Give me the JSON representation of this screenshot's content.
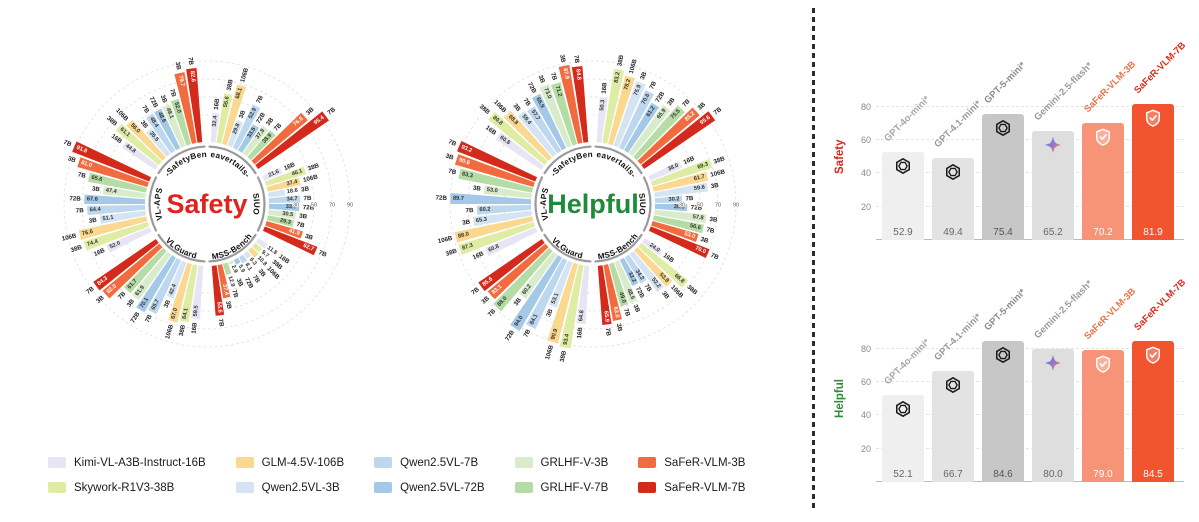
{
  "figure": {
    "models": [
      {
        "label": "Kimi-VL-A3B-Instruct-16B",
        "size": "16B",
        "color": "#E7E5F4",
        "dark": false
      },
      {
        "label": "Skywork-R1V3-38B",
        "size": "38B",
        "color": "#DFEDA4",
        "dark": false
      },
      {
        "label": "GLM-4.5V-106B",
        "size": "106B",
        "color": "#FBD88F",
        "dark": false
      },
      {
        "label": "Qwen2.5VL-3B",
        "size": "3B",
        "color": "#D4E4F3",
        "dark": false
      },
      {
        "label": "Qwen2.5VL-7B",
        "size": "7B",
        "color": "#BCD7EE",
        "dark": false
      },
      {
        "label": "Qwen2.5VL-72B",
        "size": "72B",
        "color": "#A3C8E8",
        "dark": false
      },
      {
        "label": "GRLHF-V-3B",
        "size": "3B",
        "color": "#D8ECCB",
        "dark": false
      },
      {
        "label": "GRLHF-V-7B",
        "size": "7B",
        "color": "#B4DCA4",
        "dark": false
      },
      {
        "label": "SaFeR-VLM-3B",
        "size": "3B",
        "color": "#F26B3F",
        "dark": true
      },
      {
        "label": "SaFeR-VLM-7B",
        "size": "7B",
        "color": "#D42A1C",
        "dark": true
      }
    ]
  },
  "chart_data": [
    {
      "type": "radial-bar",
      "title": "Safety",
      "title_color": "#E0231C",
      "radial_ticks": [
        30,
        50,
        70,
        90
      ],
      "axis_max": 100,
      "sectors": [
        {
          "name": "Beavertails-V",
          "values": [
            32.4,
            55.6,
            68.1,
            29.8,
            52.9,
            33.5,
            37.8,
            38.9,
            76.8,
            95.4
          ]
        },
        {
          "name": "SIUO",
          "values": [
            21.6,
            46.1,
            37.4,
            18.6,
            34.7,
            33.7,
            30.5,
            29.3,
            41.9,
            62.7
          ]
        },
        {
          "name": "MSS-Bench",
          "values": [
            11.8,
            9.7,
            10.8,
            6.3,
            8.1,
            5.9,
            2.9,
            12.9,
            37.4,
            55.6
          ]
        },
        {
          "name": "VLGuard",
          "values": [
            59.5,
            64.1,
            67.0,
            42.4,
            65.7,
            70.1,
            61.9,
            61.7,
            82.0,
            84.3
          ]
        },
        {
          "name": "VL-APS",
          "values": [
            52.0,
            74.4,
            76.6,
            51.1,
            64.4,
            67.6,
            47.4,
            65.6,
            81.0,
            91.8
          ]
        },
        {
          "name": "MM-SafetyBench",
          "values": [
            44.8,
            61.1,
            56.0,
            35.5,
            48.4,
            48.6,
            49.1,
            52.0,
            79.7,
            82.6
          ]
        }
      ]
    },
    {
      "type": "radial-bar",
      "title": "Helpful",
      "title_color": "#1F8A3B",
      "radial_ticks": [
        30,
        50,
        70,
        90
      ],
      "axis_max": 100,
      "sectors": [
        {
          "name": "Beavertails-V",
          "values": [
            50.3,
            83.2,
            78.2,
            75.9,
            70.6,
            61.2,
            65.9,
            75.5,
            85.2,
            95.6
          ]
        },
        {
          "name": "SIUO",
          "values": [
            38.0,
            69.3,
            61.7,
            59.6,
            30.2,
            35.9,
            57.8,
            56.6,
            53.0,
            70.0
          ]
        },
        {
          "name": "MSS-Bench",
          "values": [
            24.0,
            66.8,
            53.8,
            52.2,
            34.2,
            32.2,
            48.5,
            49.0,
            63.0,
            65.9
          ]
        },
        {
          "name": "VLGuard",
          "values": [
            64.8,
            93.4,
            90.9,
            53.1,
            84.1,
            94.0,
            60.2,
            88.0,
            83.1,
            85.6
          ]
        },
        {
          "name": "VL-APS",
          "values": [
            60.8,
            87.3,
            88.0,
            65.3,
            60.2,
            89.7,
            53.0,
            83.3,
            90.6,
            93.2
          ]
        },
        {
          "name": "MM-SafetyBench",
          "values": [
            60.8,
            80.8,
            68.8,
            59.4,
            57.7,
            66.9,
            73.0,
            71.2,
            87.9,
            84.8
          ]
        }
      ]
    },
    {
      "type": "bar",
      "ylabel": "Safety",
      "ylabel_color": "#D7261E",
      "ymax": 90,
      "yticks": [
        20,
        40,
        60,
        80
      ],
      "bars": [
        {
          "label": "GPT-4o-mini*",
          "value": 52.9,
          "color": "#efefef",
          "label_color": "#a6a6a6",
          "icon": "openai",
          "value_color": "#666"
        },
        {
          "label": "GPT-4.1-mini*",
          "value": 49.4,
          "color": "#e3e3e3",
          "label_color": "#999999",
          "icon": "openai",
          "value_color": "#666"
        },
        {
          "label": "GPT-5-mini*",
          "value": 75.4,
          "color": "#c7c7c7",
          "label_color": "#8a8a8a",
          "icon": "openai",
          "value_color": "#555"
        },
        {
          "label": "Gemini-2.5-flash*",
          "value": 65.2,
          "color": "#dedede",
          "label_color": "#9a9a9a",
          "icon": "gemini",
          "value_color": "#666"
        },
        {
          "label": "SaFeR-VLM-3B",
          "value": 70.2,
          "color": "#F79478",
          "label_color": "#E8734A",
          "icon": "shield",
          "value_color": "#ffffff"
        },
        {
          "label": "SaFeR-VLM-7B",
          "value": 81.9,
          "color": "#F25430",
          "label_color": "#DC2A1A",
          "icon": "shield",
          "value_color": "#ffffff"
        }
      ]
    },
    {
      "type": "bar",
      "ylabel": "Helpful",
      "ylabel_color": "#2E8B3A",
      "ymax": 90,
      "yticks": [
        20,
        40,
        60,
        80
      ],
      "bars": [
        {
          "label": "GPT-4o-mini*",
          "value": 52.1,
          "color": "#efefef",
          "label_color": "#a6a6a6",
          "icon": "openai",
          "value_color": "#666"
        },
        {
          "label": "GPT-4.1-mini*",
          "value": 66.7,
          "color": "#e3e3e3",
          "label_color": "#999999",
          "icon": "openai",
          "value_color": "#666"
        },
        {
          "label": "GPT-5-mini*",
          "value": 84.6,
          "color": "#c7c7c7",
          "label_color": "#8a8a8a",
          "icon": "openai",
          "value_color": "#555"
        },
        {
          "label": "Gemini-2.5-flash*",
          "value": 80.0,
          "color": "#dedede",
          "label_color": "#9a9a9a",
          "icon": "gemini",
          "value_color": "#666"
        },
        {
          "label": "SaFeR-VLM-3B",
          "value": 79.0,
          "color": "#F79478",
          "label_color": "#E8734A",
          "icon": "shield",
          "value_color": "#ffffff"
        },
        {
          "label": "SaFeR-VLM-7B",
          "value": 84.5,
          "color": "#F25430",
          "label_color": "#DC2A1A",
          "icon": "shield",
          "value_color": "#ffffff"
        }
      ]
    }
  ]
}
